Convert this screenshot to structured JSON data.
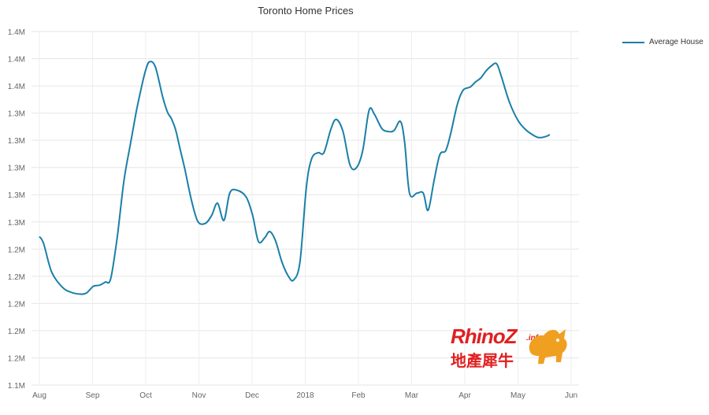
{
  "chart_data": {
    "type": "line",
    "title": "Toronto Home Prices",
    "y_tick_labels": [
      "1.4M",
      "1.4M",
      "1.4M",
      "1.3M",
      "1.3M",
      "1.3M",
      "1.3M",
      "1.3M",
      "1.2M",
      "1.2M",
      "1.2M",
      "1.2M",
      "1.2M",
      "1.1M"
    ],
    "x_tick_labels": [
      "Aug",
      "Sep",
      "Oct",
      "Nov",
      "Dec",
      "2018",
      "Feb",
      "Mar",
      "Apr",
      "May",
      "Jun"
    ],
    "ylim": [
      1.1,
      1.45
    ],
    "grid": true,
    "legend_position": "top-right",
    "series": [
      {
        "name": "Average House",
        "color": "#1a7fa8",
        "x": [
          0.0,
          0.08,
          0.23,
          0.43,
          0.59,
          0.77,
          0.88,
          0.96,
          1.02,
          1.14,
          1.24,
          1.34,
          1.46,
          1.59,
          1.71,
          1.82,
          1.92,
          2.0,
          2.07,
          2.18,
          2.32,
          2.41,
          2.48,
          2.56,
          2.64,
          2.73,
          2.86,
          2.98,
          3.12,
          3.24,
          3.35,
          3.47,
          3.58,
          3.71,
          3.89,
          4.01,
          4.12,
          4.24,
          4.33,
          4.44,
          4.56,
          4.68,
          4.78,
          4.9,
          5.02,
          5.12,
          5.24,
          5.35,
          5.48,
          5.58,
          5.71,
          5.84,
          5.96,
          6.08,
          6.2,
          6.3,
          6.44,
          6.56,
          6.67,
          6.79,
          6.87,
          6.96,
          7.1,
          7.22,
          7.31,
          7.42,
          7.53,
          7.64,
          7.73,
          7.86,
          7.97,
          8.1,
          8.2,
          8.3,
          8.4,
          8.5,
          8.6,
          8.69,
          8.84,
          9.0,
          9.14,
          9.27,
          9.39,
          9.52,
          9.6
        ],
        "values": [
          1.247,
          1.24,
          1.212,
          1.197,
          1.192,
          1.19,
          1.191,
          1.195,
          1.198,
          1.199,
          1.202,
          1.205,
          1.245,
          1.302,
          1.338,
          1.37,
          1.395,
          1.412,
          1.42,
          1.415,
          1.385,
          1.37,
          1.364,
          1.353,
          1.335,
          1.315,
          1.283,
          1.262,
          1.26,
          1.268,
          1.28,
          1.263,
          1.29,
          1.293,
          1.286,
          1.268,
          1.242,
          1.246,
          1.252,
          1.243,
          1.222,
          1.208,
          1.204,
          1.222,
          1.296,
          1.324,
          1.33,
          1.33,
          1.353,
          1.363,
          1.351,
          1.318,
          1.315,
          1.332,
          1.372,
          1.368,
          1.354,
          1.351,
          1.352,
          1.361,
          1.34,
          1.29,
          1.29,
          1.29,
          1.273,
          1.302,
          1.328,
          1.332,
          1.348,
          1.378,
          1.392,
          1.395,
          1.4,
          1.404,
          1.411,
          1.416,
          1.418,
          1.405,
          1.38,
          1.362,
          1.353,
          1.348,
          1.345,
          1.346,
          1.348
        ]
      }
    ]
  },
  "watermark": {
    "brand": "RhinoZ",
    "suffix": ".info",
    "chinese": "地產犀牛"
  }
}
